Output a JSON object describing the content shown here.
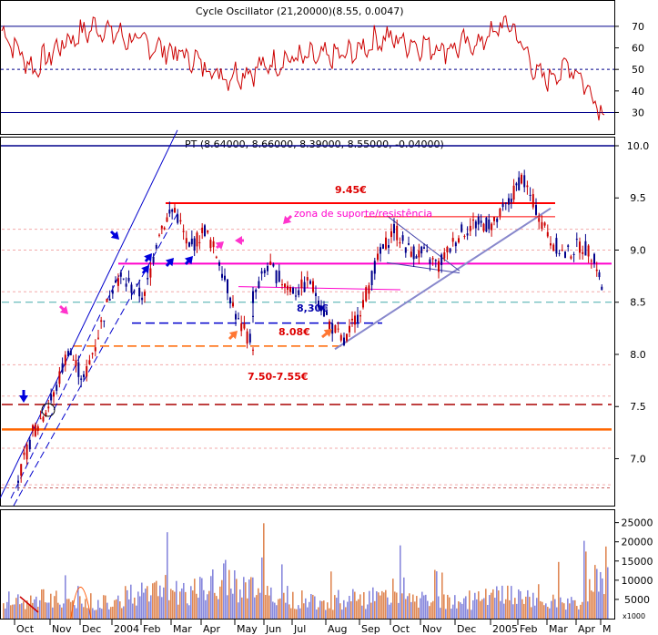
{
  "colors": {
    "background": "#ffffff",
    "frame": "#000000",
    "osc_line": "#cc0000",
    "osc_level": "#00008b",
    "candle_up": "#00008b",
    "candle_down": "#cc0000",
    "resistance": "#ff0000",
    "support_magenta": "#ff00cc",
    "orange_line": "#ff6600",
    "channel_line": "#0000cc",
    "trend_line": "#8888cc",
    "arrow_blue": "#0000dd",
    "arrow_magenta": "#ff33cc",
    "arrow_orange": "#ff7733",
    "label_red": "#dd0000",
    "label_blue": "#0000aa",
    "volume_blue": "#8888dd",
    "volume_orange": "#e08855"
  },
  "oscillator": {
    "title": "Cycle Oscillator (21,20000)(8.55, 0.0047)",
    "ticks": [
      "70",
      "60",
      "50",
      "40",
      "30"
    ]
  },
  "price": {
    "title": "PT (8.64000, 8.66000, 8.39000, 8.55000, -0.04000)",
    "ticks": [
      "10.0",
      "9.5",
      "9.0",
      "8.5",
      "8.0",
      "7.5",
      "7.0"
    ]
  },
  "volume": {
    "ticks": [
      "25000",
      "20000",
      "15000",
      "10000",
      "5000"
    ],
    "unit": "x1000"
  },
  "annotations": {
    "resistance_label": "9.45€",
    "zone_label": "zona de suporte/resistência",
    "support_830": "8,30€",
    "support_808": "8.08€",
    "zone_750": "7.50-7.55€"
  },
  "x_axis": {
    "labels": [
      "Oct",
      "Nov",
      "Dec",
      "2004",
      "Feb",
      "Mar",
      "Apr",
      "May",
      "Jun",
      "Jul",
      "Aug",
      "Sep",
      "Oct",
      "Nov",
      "Dec",
      "2005",
      "Feb",
      "Mar",
      "Apr",
      "M"
    ]
  },
  "chart_data": [
    {
      "type": "line",
      "title": "Cycle Oscillator (21,20000)(8.55, 0.0047)",
      "ylim": [
        23,
        78
      ],
      "reference_lines": [
        70,
        50,
        30
      ],
      "x": [
        "Oct",
        "Nov",
        "Dec",
        "2004",
        "Feb",
        "Mar",
        "Apr",
        "May",
        "Jun",
        "Jul",
        "Aug",
        "Sep",
        "Oct",
        "Nov",
        "Dec",
        "2005",
        "Feb",
        "Mar",
        "Apr",
        "M"
      ],
      "series": [
        {
          "values": [
            68,
            50,
            63,
            70,
            64,
            60,
            55,
            47,
            50,
            55,
            55,
            57,
            65,
            62,
            60,
            62,
            72,
            45,
            52,
            30
          ]
        }
      ]
    },
    {
      "type": "candlestick",
      "title": "PT (8.64000, 8.66000, 8.39000, 8.55000, -0.04000)",
      "ylim": [
        6.55,
        10.0
      ],
      "x": [
        "Oct",
        "Nov",
        "Dec",
        "2004",
        "Feb",
        "Mar",
        "Apr",
        "May",
        "Jun",
        "Jul",
        "Aug",
        "Sep",
        "Oct",
        "Nov",
        "Dec",
        "2005",
        "Feb",
        "Mar",
        "Apr",
        "M"
      ],
      "close_path": [
        [
          "Oct",
          6.8
        ],
        [
          "Oct",
          7.25
        ],
        [
          "Nov",
          7.6
        ],
        [
          "Nov",
          8.05
        ],
        [
          "Dec",
          7.75
        ],
        [
          "Dec",
          8.2
        ],
        [
          "2004",
          8.75
        ],
        [
          "Feb",
          8.55
        ],
        [
          "Feb",
          9.2
        ],
        [
          "Mar",
          9.4
        ],
        [
          "Mar",
          9.0
        ],
        [
          "Apr",
          9.2
        ],
        [
          "Apr",
          8.9
        ],
        [
          "May",
          8.3
        ],
        [
          "May",
          8.1
        ],
        [
          "May",
          8.55
        ],
        [
          "Jun",
          8.85
        ],
        [
          "Jun",
          8.7
        ],
        [
          "Jul",
          8.6
        ],
        [
          "Jul",
          8.7
        ],
        [
          "Aug",
          8.3
        ],
        [
          "Aug",
          8.1
        ],
        [
          "Sep",
          8.5
        ],
        [
          "Sep",
          8.9
        ],
        [
          "Oct",
          9.2
        ],
        [
          "Oct",
          9.0
        ],
        [
          "Nov",
          8.95
        ],
        [
          "Nov",
          8.85
        ],
        [
          "Dec",
          9.15
        ],
        [
          "Dec",
          9.25
        ],
        [
          "2005",
          9.25
        ],
        [
          "2005",
          9.45
        ],
        [
          "Feb",
          9.7
        ],
        [
          "Feb",
          9.4
        ],
        [
          "Mar",
          9.1
        ],
        [
          "Mar",
          8.95
        ],
        [
          "Apr",
          9.05
        ],
        [
          "Apr",
          8.95
        ],
        [
          "M",
          8.55
        ]
      ],
      "horizontal_levels": [
        9.45,
        8.87,
        8.3,
        8.08,
        7.52,
        7.28,
        8.5
      ]
    },
    {
      "type": "bar",
      "title": "",
      "ylim": [
        0,
        28000
      ],
      "x": [
        "Oct",
        "Nov",
        "Dec",
        "2004",
        "Feb",
        "Mar",
        "Apr",
        "May",
        "Jun",
        "Jul",
        "Aug",
        "Sep",
        "Oct",
        "Nov",
        "Dec",
        "2005",
        "Feb",
        "Mar",
        "Apr",
        "M"
      ],
      "values": [
        4000,
        6000,
        5500,
        5000,
        7000,
        9000,
        8000,
        12000,
        8000,
        6000,
        5500,
        6000,
        6500,
        5500,
        5000,
        6000,
        7000,
        5000,
        4500,
        16000
      ]
    }
  ]
}
